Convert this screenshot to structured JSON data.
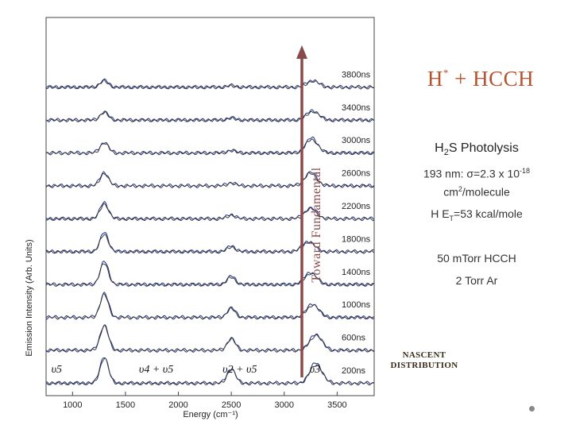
{
  "slide": {
    "title_main": "H",
    "title_sup": "*",
    "title_rest": " + HCCH",
    "subtitle_pre": "H",
    "subtitle_sub": "2",
    "subtitle_post": "S Photolysis",
    "line1_pre": "193 nm: σ=2.3 x 10",
    "line1_sup": "-18",
    "line2_pre": "cm",
    "line2_sup": "2",
    "line2_post": "/molecule",
    "line3_pre": "H E",
    "line3_sub": "T",
    "line3_post": "=53 kcal/mole",
    "line4": "50 mTorr HCCH",
    "line5": "2 Torr Ar",
    "nascent_line1": "NASCENT",
    "nascent_line2": "DISTRIBUTION",
    "arrow_label": "Toward Fundamental",
    "arrow_color": "#8b4a4a",
    "title_color": "#b5532e"
  },
  "chart_data": {
    "type": "line",
    "title": "",
    "xlabel": "Energy (cm⁻¹)",
    "ylabel": "Emission Intensity (Arb. Units)",
    "xlim": [
      750,
      3850
    ],
    "xticks": [
      1000,
      1500,
      2000,
      2500,
      3000,
      3500
    ],
    "series": [
      {
        "name": "200ns",
        "peaks": [
          [
            1300,
            1.0
          ],
          [
            2500,
            0.55
          ],
          [
            3300,
            0.75
          ]
        ]
      },
      {
        "name": "600ns",
        "peaks": [
          [
            1300,
            0.95
          ],
          [
            2500,
            0.45
          ],
          [
            3300,
            0.6
          ]
        ]
      },
      {
        "name": "1000ns",
        "peaks": [
          [
            1300,
            0.9
          ],
          [
            2500,
            0.35
          ],
          [
            3270,
            0.5
          ]
        ]
      },
      {
        "name": "1400ns",
        "peaks": [
          [
            1300,
            0.85
          ],
          [
            2500,
            0.3
          ],
          [
            3250,
            0.45
          ]
        ]
      },
      {
        "name": "1800ns",
        "peaks": [
          [
            1300,
            0.7
          ],
          [
            2500,
            0.2
          ],
          [
            3230,
            0.38
          ]
        ]
      },
      {
        "name": "2200ns",
        "peaks": [
          [
            1300,
            0.6
          ],
          [
            2500,
            0.15
          ],
          [
            3250,
            0.4
          ]
        ]
      },
      {
        "name": "2600ns",
        "peaks": [
          [
            1300,
            0.5
          ],
          [
            2500,
            0.12
          ],
          [
            3250,
            0.5
          ]
        ]
      },
      {
        "name": "3000ns",
        "peaks": [
          [
            1300,
            0.4
          ],
          [
            2500,
            0.1
          ],
          [
            3260,
            0.55
          ]
        ]
      },
      {
        "name": "3400ns",
        "peaks": [
          [
            1300,
            0.3
          ],
          [
            2500,
            0.08
          ],
          [
            3270,
            0.35
          ]
        ]
      },
      {
        "name": "3800ns",
        "peaks": [
          [
            1300,
            0.25
          ],
          [
            2500,
            0.06
          ],
          [
            3270,
            0.25
          ]
        ]
      }
    ],
    "annotations": [
      {
        "text": "υ3",
        "x": 3290
      },
      {
        "text": "υ2 + υ5",
        "x": 2580
      },
      {
        "text": "υ4 + υ5",
        "x": 1790
      },
      {
        "text": "υ5",
        "x": 850
      }
    ],
    "line_colors": [
      "#1c2f8a",
      "#3a3a3a"
    ]
  }
}
